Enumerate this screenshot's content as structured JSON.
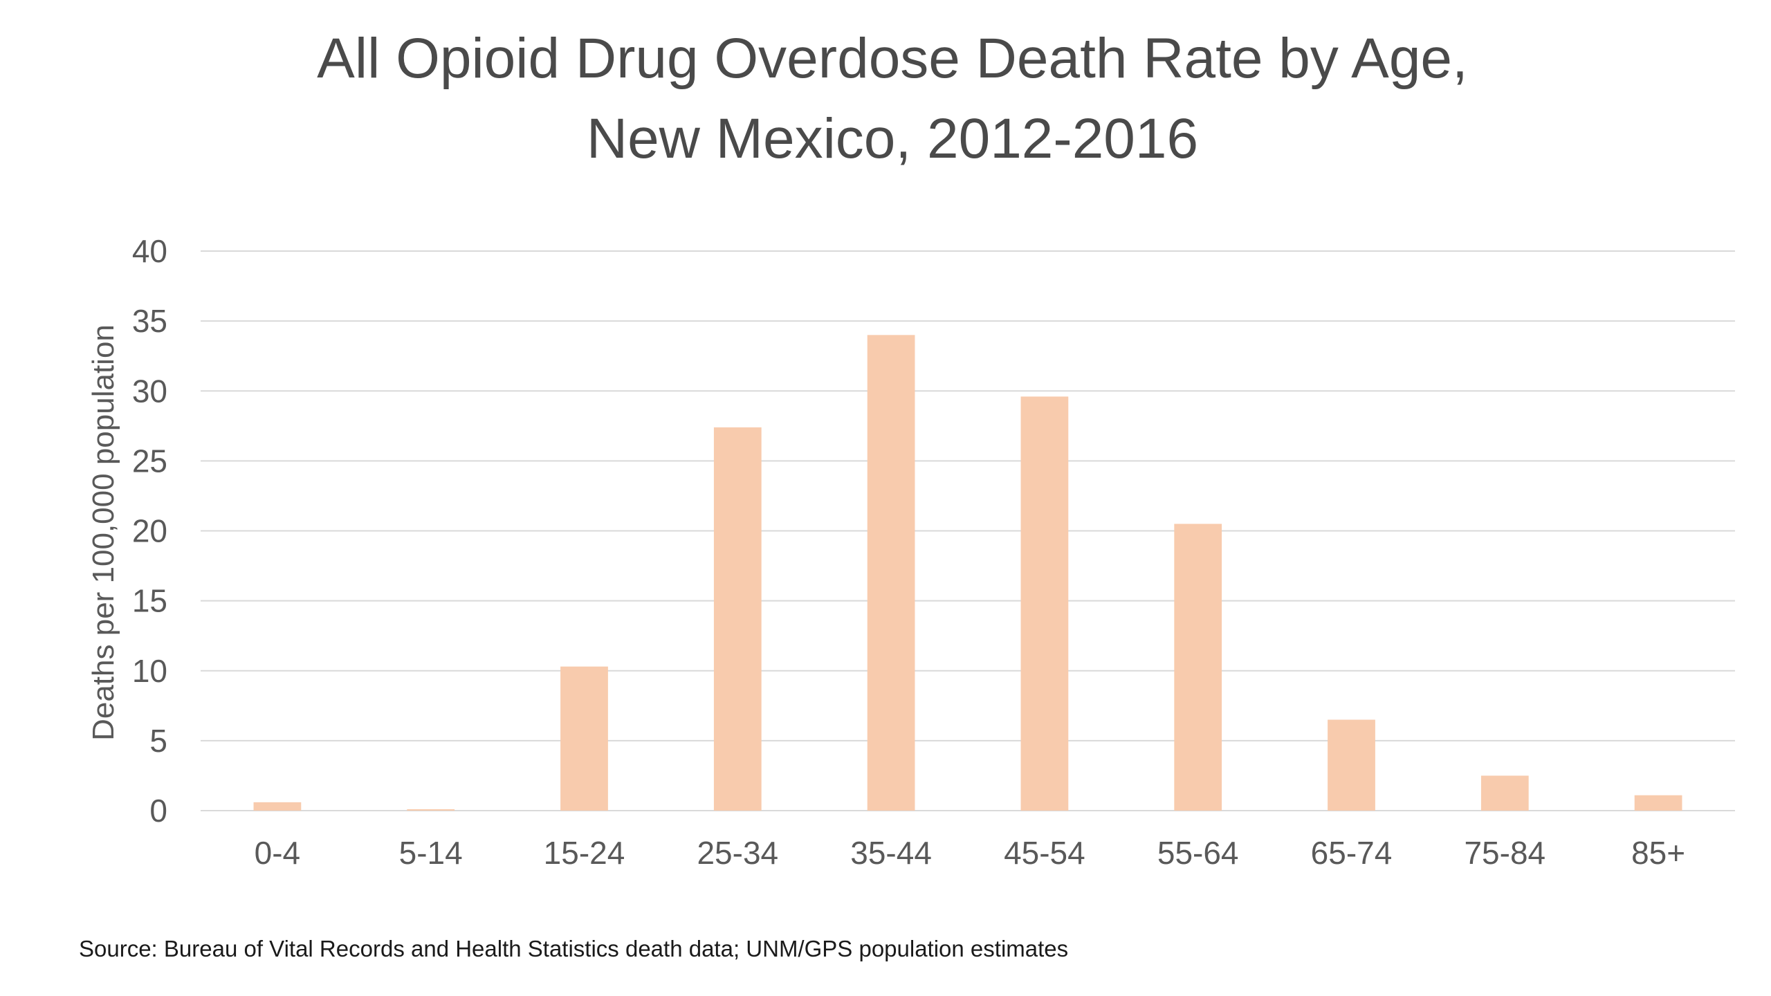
{
  "chart_data": {
    "type": "bar",
    "title_lines": [
      "All Opioid Drug Overdose Death Rate by Age,",
      "New Mexico, 2012-2016"
    ],
    "xlabel": "",
    "ylabel": "Deaths per 100,000 population",
    "categories": [
      "0-4",
      "5-14",
      "15-24",
      "25-34",
      "35-44",
      "45-54",
      "55-64",
      "65-74",
      "75-84",
      "85+"
    ],
    "values": [
      0.6,
      0.1,
      10.3,
      27.4,
      34.0,
      29.6,
      20.5,
      6.5,
      2.5,
      1.1
    ],
    "ylim": [
      0,
      40
    ],
    "yticks": [
      "0",
      "5",
      "10",
      "15",
      "20",
      "25",
      "30",
      "35",
      "40"
    ],
    "grid": true,
    "legend": "none",
    "bar_color": "#f8cbad",
    "source": "Source:  Bureau of Vital Records and Health Statistics death data; UNM/GPS population estimates"
  }
}
